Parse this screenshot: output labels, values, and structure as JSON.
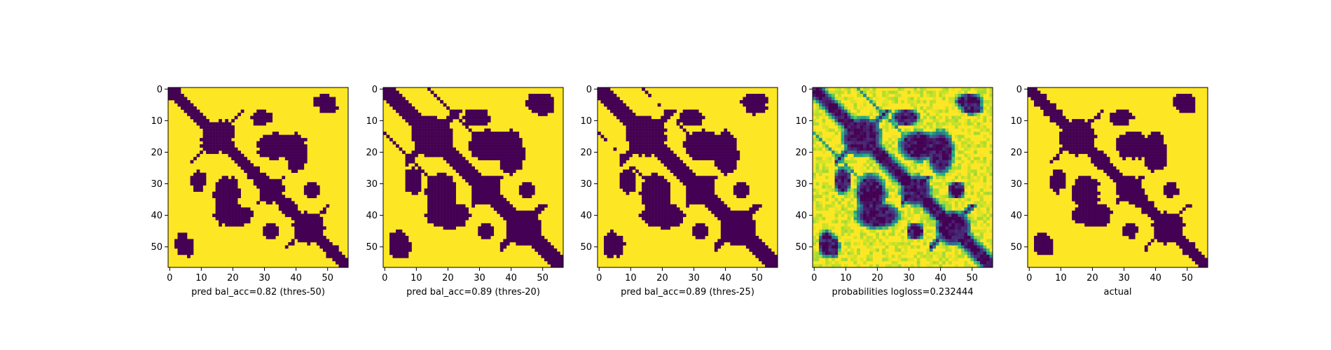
{
  "chart_data": [
    {
      "type": "heatmap",
      "title": "",
      "xlabel": "pred bal_acc=0.82 (thres-50)",
      "ylabel": "",
      "xlim": [
        0,
        57
      ],
      "ylim": [
        57,
        0
      ],
      "xticks": [
        0,
        10,
        20,
        30,
        40,
        50
      ],
      "yticks": [
        0,
        10,
        20,
        30,
        40,
        50
      ],
      "grid": false,
      "values": "binary",
      "colors": {
        "low": "#440154",
        "high": "#fde725"
      },
      "regions": "diagonal band and contact lobes; thin"
    },
    {
      "type": "heatmap",
      "title": "",
      "xlabel": "pred bal_acc=0.89 (thres-20)",
      "ylabel": "",
      "xlim": [
        0,
        57
      ],
      "ylim": [
        57,
        0
      ],
      "xticks": [
        0,
        10,
        20,
        30,
        40,
        50
      ],
      "yticks": [
        0,
        10,
        20,
        30,
        40,
        50
      ],
      "grid": false,
      "values": "binary",
      "colors": {
        "low": "#440154",
        "high": "#fde725"
      }
    },
    {
      "type": "heatmap",
      "title": "",
      "xlabel": "pred bal_acc=0.89 (thres-25)",
      "ylabel": "",
      "xlim": [
        0,
        57
      ],
      "ylim": [
        57,
        0
      ],
      "xticks": [
        0,
        10,
        20,
        30,
        40,
        50
      ],
      "yticks": [
        0,
        10,
        20,
        30,
        40,
        50
      ],
      "grid": false,
      "values": "binary",
      "colors": {
        "low": "#440154",
        "high": "#fde725"
      }
    },
    {
      "type": "heatmap",
      "title": "",
      "xlabel": "probabilities logloss=0.232444",
      "ylabel": "",
      "xlim": [
        0,
        57
      ],
      "ylim": [
        57,
        0
      ],
      "xticks": [
        0,
        10,
        20,
        30,
        40,
        50
      ],
      "yticks": [
        0,
        10,
        20,
        30,
        40,
        50
      ],
      "grid": false,
      "values": "continuous",
      "colormap": "viridis"
    },
    {
      "type": "heatmap",
      "title": "",
      "xlabel": "actual",
      "ylabel": "",
      "xlim": [
        0,
        57
      ],
      "ylim": [
        57,
        0
      ],
      "xticks": [
        0,
        10,
        20,
        30,
        40,
        50
      ],
      "yticks": [
        0,
        10,
        20,
        30,
        40,
        50
      ],
      "grid": false,
      "values": "binary",
      "colors": {
        "low": "#440154",
        "high": "#fde725"
      }
    }
  ]
}
